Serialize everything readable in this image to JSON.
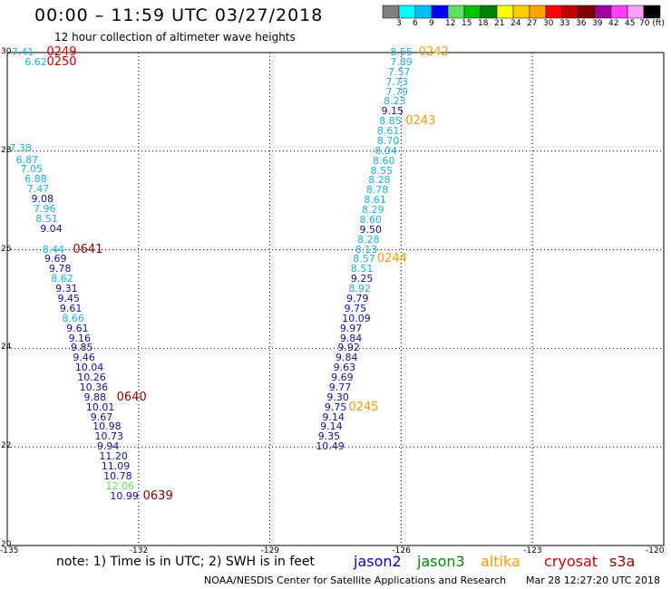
{
  "title": "00:00 – 11:59 UTC 03/27/2018",
  "subtitle": "12 hour collection of altimeter wave heights",
  "colorbar": {
    "ticks": [
      "3",
      "6",
      "9",
      "12",
      "15",
      "18",
      "21",
      "24",
      "27",
      "30",
      "33",
      "36",
      "39",
      "42",
      "45",
      "70 (ft)"
    ],
    "colors": [
      "#7f7f7f",
      "#00ffff",
      "#00bfff",
      "#0000ff",
      "#5fe05f",
      "#00c000",
      "#008000",
      "#ffff00",
      "#ffcc00",
      "#ffa500",
      "#ff0000",
      "#c00000",
      "#800000",
      "#a000a0",
      "#ff40ff",
      "#ffa0ff",
      "#000000"
    ]
  },
  "note": "note:  1) Time is in UTC;  2) SWH is in feet",
  "satellites": [
    {
      "name": "jason2",
      "color": "#0000cc"
    },
    {
      "name": "jason3",
      "color": "#008800"
    },
    {
      "name": "altika",
      "color": "#ff9900"
    },
    {
      "name": "cryosat",
      "color": "#cc0000"
    },
    {
      "name": "s3a",
      "color": "#880000"
    }
  ],
  "credit": "NOAA/NESDIS Center for Satellite Applications and Research",
  "timestamp": "Mar 28 12:27:20 UTC 2018",
  "chart_data": {
    "type": "scatter",
    "x_ticks": [
      "-135",
      "-132",
      "-129",
      "-126",
      "-123",
      "-120"
    ],
    "y_ticks": [
      "30",
      "28",
      "26",
      "24",
      "22",
      "20"
    ],
    "xlim": [
      -135,
      -120
    ],
    "ylim": [
      20,
      30
    ],
    "grid": true,
    "points": [
      {
        "lon": -134.9,
        "lat": 30.0,
        "v": "7.41",
        "c": "#1ab0e0"
      },
      {
        "lon": -134.6,
        "lat": 29.8,
        "v": "6.62",
        "c": "#1ab0e0"
      },
      {
        "lon": -134.95,
        "lat": 28.05,
        "v": "7.38",
        "c": "#1ab0e0"
      },
      {
        "lon": -134.8,
        "lat": 27.82,
        "v": "6.87",
        "c": "#1ab0e0"
      },
      {
        "lon": -134.7,
        "lat": 27.62,
        "v": "7.05",
        "c": "#1ab0e0"
      },
      {
        "lon": -134.6,
        "lat": 27.42,
        "v": "6.88",
        "c": "#1ab0e0"
      },
      {
        "lon": -134.55,
        "lat": 27.22,
        "v": "7.47",
        "c": "#1ab0e0"
      },
      {
        "lon": -134.45,
        "lat": 27.02,
        "v": "9.08",
        "c": "#1010a0"
      },
      {
        "lon": -134.4,
        "lat": 26.82,
        "v": "7.96",
        "c": "#1ab0e0"
      },
      {
        "lon": -134.35,
        "lat": 26.62,
        "v": "8.51",
        "c": "#1ab0e0"
      },
      {
        "lon": -134.25,
        "lat": 26.42,
        "v": "9.04",
        "c": "#1010a0"
      },
      {
        "lon": -134.2,
        "lat": 26.0,
        "v": "8.44",
        "c": "#1ab0e0"
      },
      {
        "lon": -134.15,
        "lat": 25.8,
        "v": "9.69",
        "c": "#1010a0"
      },
      {
        "lon": -134.05,
        "lat": 25.6,
        "v": "9.78",
        "c": "#1010a0"
      },
      {
        "lon": -134.0,
        "lat": 25.4,
        "v": "8.62",
        "c": "#1ab0e0"
      },
      {
        "lon": -133.9,
        "lat": 25.2,
        "v": "9.31",
        "c": "#1010a0"
      },
      {
        "lon": -133.85,
        "lat": 25.0,
        "v": "9.45",
        "c": "#1010a0"
      },
      {
        "lon": -133.8,
        "lat": 24.8,
        "v": "9.61",
        "c": "#1010a0"
      },
      {
        "lon": -133.75,
        "lat": 24.6,
        "v": "8.66",
        "c": "#1ab0e0"
      },
      {
        "lon": -133.65,
        "lat": 24.4,
        "v": "9.61",
        "c": "#1010a0"
      },
      {
        "lon": -133.6,
        "lat": 24.2,
        "v": "9.16",
        "c": "#1010a0"
      },
      {
        "lon": -133.55,
        "lat": 24.0,
        "v": "9.85",
        "c": "#1010a0"
      },
      {
        "lon": -133.5,
        "lat": 23.8,
        "v": "9.46",
        "c": "#1010a0"
      },
      {
        "lon": -133.45,
        "lat": 23.6,
        "v": "10.04",
        "c": "#1010a0"
      },
      {
        "lon": -133.4,
        "lat": 23.4,
        "v": "10.26",
        "c": "#1010a0"
      },
      {
        "lon": -133.35,
        "lat": 23.2,
        "v": "10.36",
        "c": "#1010a0"
      },
      {
        "lon": -133.25,
        "lat": 23.0,
        "v": "9.88",
        "c": "#1010a0"
      },
      {
        "lon": -133.2,
        "lat": 22.8,
        "v": "10.01",
        "c": "#1010a0"
      },
      {
        "lon": -133.1,
        "lat": 22.6,
        "v": "9.67",
        "c": "#1010a0"
      },
      {
        "lon": -133.05,
        "lat": 22.4,
        "v": "10.98",
        "c": "#1010a0"
      },
      {
        "lon": -133.0,
        "lat": 22.2,
        "v": "10.73",
        "c": "#1010a0"
      },
      {
        "lon": -132.95,
        "lat": 22.0,
        "v": "9.94",
        "c": "#1010a0"
      },
      {
        "lon": -132.9,
        "lat": 21.8,
        "v": "11.20",
        "c": "#1010a0"
      },
      {
        "lon": -132.85,
        "lat": 21.6,
        "v": "11.09",
        "c": "#1010a0"
      },
      {
        "lon": -132.8,
        "lat": 21.4,
        "v": "10.78",
        "c": "#1010a0"
      },
      {
        "lon": -132.75,
        "lat": 21.2,
        "v": "12.06",
        "c": "#66dd55"
      },
      {
        "lon": -132.65,
        "lat": 21.0,
        "v": "10.99",
        "c": "#1010a0"
      },
      {
        "lon": -126.25,
        "lat": 30.0,
        "v": "8.55",
        "c": "#1ab0e0"
      },
      {
        "lon": -126.25,
        "lat": 29.8,
        "v": "7.89",
        "c": "#1ab0e0"
      },
      {
        "lon": -126.3,
        "lat": 29.6,
        "v": "7.57",
        "c": "#1ab0e0"
      },
      {
        "lon": -126.35,
        "lat": 29.4,
        "v": "7.73",
        "c": "#1ab0e0"
      },
      {
        "lon": -126.35,
        "lat": 29.2,
        "v": "7.79",
        "c": "#1ab0e0"
      },
      {
        "lon": -126.4,
        "lat": 29.0,
        "v": "8.23",
        "c": "#1ab0e0"
      },
      {
        "lon": -126.45,
        "lat": 28.8,
        "v": "9.15",
        "c": "#1010a0"
      },
      {
        "lon": -126.5,
        "lat": 28.6,
        "v": "8.85",
        "c": "#1ab0e0"
      },
      {
        "lon": -126.55,
        "lat": 28.4,
        "v": "8.61",
        "c": "#1ab0e0"
      },
      {
        "lon": -126.55,
        "lat": 28.2,
        "v": "8.70",
        "c": "#1ab0e0"
      },
      {
        "lon": -126.6,
        "lat": 28.0,
        "v": "8.04",
        "c": "#1ab0e0"
      },
      {
        "lon": -126.65,
        "lat": 27.8,
        "v": "8.60",
        "c": "#1ab0e0"
      },
      {
        "lon": -126.7,
        "lat": 27.6,
        "v": "8.55",
        "c": "#1ab0e0"
      },
      {
        "lon": -126.75,
        "lat": 27.4,
        "v": "8.28",
        "c": "#1ab0e0"
      },
      {
        "lon": -126.8,
        "lat": 27.2,
        "v": "8.78",
        "c": "#1ab0e0"
      },
      {
        "lon": -126.85,
        "lat": 27.0,
        "v": "8.61",
        "c": "#1ab0e0"
      },
      {
        "lon": -126.9,
        "lat": 26.8,
        "v": "8.29",
        "c": "#1ab0e0"
      },
      {
        "lon": -126.95,
        "lat": 26.6,
        "v": "8.60",
        "c": "#1ab0e0"
      },
      {
        "lon": -126.95,
        "lat": 26.4,
        "v": "9.50",
        "c": "#1010a0"
      },
      {
        "lon": -127.0,
        "lat": 26.2,
        "v": "8.28",
        "c": "#1ab0e0"
      },
      {
        "lon": -127.05,
        "lat": 26.0,
        "v": "8.13",
        "c": "#1ab0e0"
      },
      {
        "lon": -127.1,
        "lat": 25.8,
        "v": "8.57",
        "c": "#1ab0e0"
      },
      {
        "lon": -127.15,
        "lat": 25.6,
        "v": "8.51",
        "c": "#1ab0e0"
      },
      {
        "lon": -127.15,
        "lat": 25.4,
        "v": "9.25",
        "c": "#1010a0"
      },
      {
        "lon": -127.2,
        "lat": 25.2,
        "v": "8.92",
        "c": "#1ab0e0"
      },
      {
        "lon": -127.25,
        "lat": 25.0,
        "v": "9.79",
        "c": "#1010a0"
      },
      {
        "lon": -127.3,
        "lat": 24.8,
        "v": "9.75",
        "c": "#1010a0"
      },
      {
        "lon": -127.35,
        "lat": 24.6,
        "v": "10.09",
        "c": "#1010a0"
      },
      {
        "lon": -127.4,
        "lat": 24.4,
        "v": "9.97",
        "c": "#1010a0"
      },
      {
        "lon": -127.4,
        "lat": 24.2,
        "v": "9.84",
        "c": "#1010a0"
      },
      {
        "lon": -127.45,
        "lat": 24.0,
        "v": "9.92",
        "c": "#1010a0"
      },
      {
        "lon": -127.5,
        "lat": 23.8,
        "v": "9.84",
        "c": "#1010a0"
      },
      {
        "lon": -127.55,
        "lat": 23.6,
        "v": "9.63",
        "c": "#1010a0"
      },
      {
        "lon": -127.6,
        "lat": 23.4,
        "v": "9.69",
        "c": "#1010a0"
      },
      {
        "lon": -127.65,
        "lat": 23.2,
        "v": "9.77",
        "c": "#1010a0"
      },
      {
        "lon": -127.7,
        "lat": 23.0,
        "v": "9.30",
        "c": "#1010a0"
      },
      {
        "lon": -127.75,
        "lat": 22.8,
        "v": "9.75",
        "c": "#1010a0"
      },
      {
        "lon": -127.8,
        "lat": 22.6,
        "v": "9.14",
        "c": "#1010a0"
      },
      {
        "lon": -127.85,
        "lat": 22.4,
        "v": "9.14",
        "c": "#1010a0"
      },
      {
        "lon": -127.9,
        "lat": 22.2,
        "v": "9.35",
        "c": "#1010a0"
      },
      {
        "lon": -127.95,
        "lat": 22.0,
        "v": "10.49",
        "c": "#1010a0"
      }
    ],
    "time_labels": [
      {
        "lon": -134.1,
        "lat": 30.0,
        "t": "0249",
        "c": "#cc0000"
      },
      {
        "lon": -134.1,
        "lat": 29.8,
        "t": "0250",
        "c": "#cc0000"
      },
      {
        "lon": -125.6,
        "lat": 30.0,
        "t": "0242",
        "c": "#ff9900"
      },
      {
        "lon": -125.9,
        "lat": 28.6,
        "t": "0243",
        "c": "#ff9900"
      },
      {
        "lon": -133.5,
        "lat": 26.0,
        "t": "0641",
        "c": "#880000"
      },
      {
        "lon": -126.55,
        "lat": 25.8,
        "t": "0244",
        "c": "#ff9900"
      },
      {
        "lon": -132.5,
        "lat": 23.0,
        "t": "0640",
        "c": "#880000"
      },
      {
        "lon": -127.2,
        "lat": 22.8,
        "t": "0245",
        "c": "#ff9900"
      },
      {
        "lon": -131.9,
        "lat": 21.0,
        "t": "0639",
        "c": "#880000"
      }
    ]
  }
}
